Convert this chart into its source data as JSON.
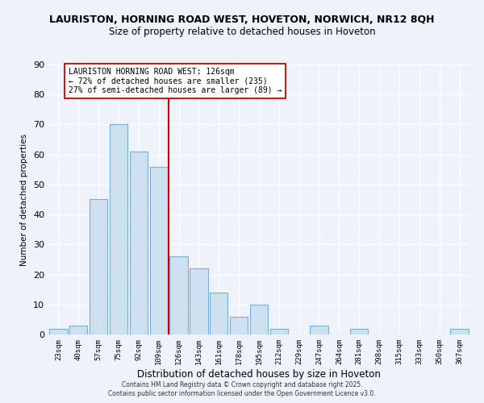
{
  "title": "LAURISTON, HORNING ROAD WEST, HOVETON, NORWICH, NR12 8QH",
  "subtitle": "Size of property relative to detached houses in Hoveton",
  "xlabel": "Distribution of detached houses by size in Hoveton",
  "ylabel": "Number of detached properties",
  "bar_color": "#cce0f0",
  "bar_edge_color": "#7ab0d4",
  "categories": [
    "23sqm",
    "40sqm",
    "57sqm",
    "75sqm",
    "92sqm",
    "109sqm",
    "126sqm",
    "143sqm",
    "161sqm",
    "178sqm",
    "195sqm",
    "212sqm",
    "229sqm",
    "247sqm",
    "264sqm",
    "281sqm",
    "298sqm",
    "315sqm",
    "333sqm",
    "350sqm",
    "367sqm"
  ],
  "values": [
    2,
    3,
    45,
    70,
    61,
    56,
    26,
    22,
    14,
    6,
    10,
    2,
    0,
    3,
    0,
    2,
    0,
    0,
    0,
    0,
    2
  ],
  "ylim": [
    0,
    90
  ],
  "yticks": [
    0,
    10,
    20,
    30,
    40,
    50,
    60,
    70,
    80,
    90
  ],
  "vline_index": 6,
  "vline_color": "#cc0000",
  "annotation_title": "LAURISTON HORNING ROAD WEST: 126sqm",
  "annotation_line1": "← 72% of detached houses are smaller (235)",
  "annotation_line2": "27% of semi-detached houses are larger (89) →",
  "annotation_box_color": "#ffffff",
  "annotation_box_edge": "#cc0000",
  "background_color": "#eef2fb",
  "grid_color": "#ffffff",
  "footer1": "Contains HM Land Registry data © Crown copyright and database right 2025.",
  "footer2": "Contains public sector information licensed under the Open Government Licence v3.0."
}
